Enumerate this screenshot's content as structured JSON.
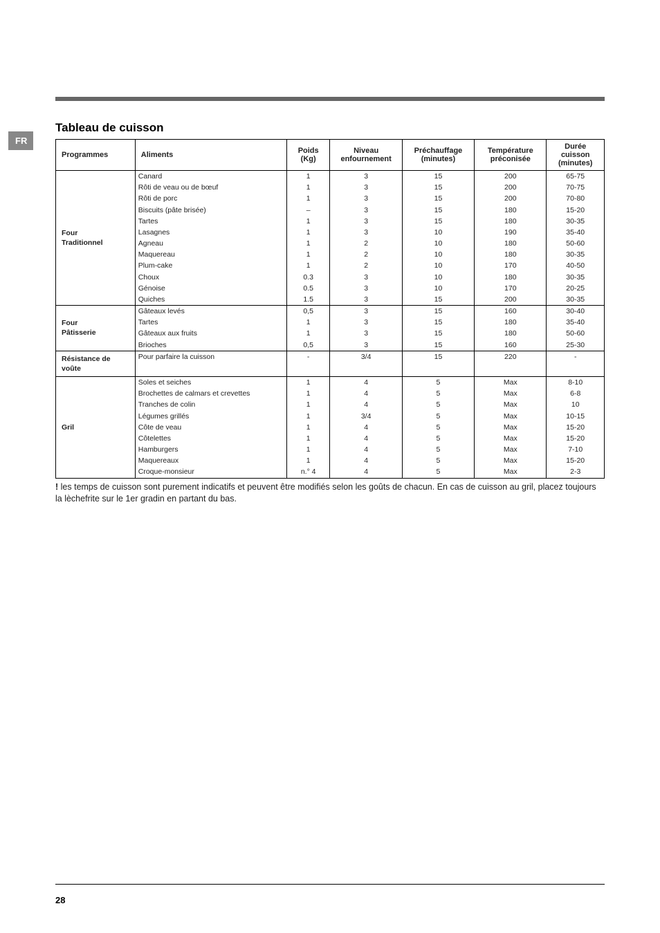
{
  "lang_tab": "FR",
  "page_number": "28",
  "title": "Tableau de cuisson",
  "headers": {
    "programmes": "Programmes",
    "aliments": "Aliments",
    "poids": "Poids (Kg)",
    "niveau": "Niveau enfournement",
    "prechauffage": "Préchauffage (minutes)",
    "temperature": "Température préconisée",
    "duree": "Durée cuisson (minutes)"
  },
  "groups": [
    {
      "programme": "Four Traditionnel",
      "rows": [
        {
          "aliment": "Canard",
          "poids": "1",
          "niveau": "3",
          "prechauf": "15",
          "temp": "200",
          "duree": "65-75"
        },
        {
          "aliment": "Rôti de veau ou de bœuf",
          "poids": "1",
          "niveau": "3",
          "prechauf": "15",
          "temp": "200",
          "duree": "70-75"
        },
        {
          "aliment": "Rôti de porc",
          "poids": "1",
          "niveau": "3",
          "prechauf": "15",
          "temp": "200",
          "duree": "70-80"
        },
        {
          "aliment": "Biscuits (pâte brisée)",
          "poids": "–",
          "niveau": "3",
          "prechauf": "15",
          "temp": "180",
          "duree": "15-20"
        },
        {
          "aliment": "Tartes",
          "poids": "1",
          "niveau": "3",
          "prechauf": "15",
          "temp": "180",
          "duree": "30-35"
        },
        {
          "aliment": "Lasagnes",
          "poids": "1",
          "niveau": "3",
          "prechauf": "10",
          "temp": "190",
          "duree": "35-40"
        },
        {
          "aliment": "Agneau",
          "poids": "1",
          "niveau": "2",
          "prechauf": "10",
          "temp": "180",
          "duree": "50-60"
        },
        {
          "aliment": "Maquereau",
          "poids": "1",
          "niveau": "2",
          "prechauf": "10",
          "temp": "180",
          "duree": "30-35"
        },
        {
          "aliment": "Plum-cake",
          "poids": "1",
          "niveau": "2",
          "prechauf": "10",
          "temp": "170",
          "duree": "40-50"
        },
        {
          "aliment": "Choux",
          "poids": "0.3",
          "niveau": "3",
          "prechauf": "10",
          "temp": "180",
          "duree": "30-35"
        },
        {
          "aliment": "Génoise",
          "poids": "0.5",
          "niveau": "3",
          "prechauf": "10",
          "temp": "170",
          "duree": "20-25"
        },
        {
          "aliment": "Quiches",
          "poids": "1.5",
          "niveau": "3",
          "prechauf": "15",
          "temp": "200",
          "duree": "30-35"
        }
      ]
    },
    {
      "programme": "Four Pâtisserie",
      "rows": [
        {
          "aliment": "Gâteaux levés",
          "poids": "0,5",
          "niveau": "3",
          "prechauf": "15",
          "temp": "160",
          "duree": "30-40"
        },
        {
          "aliment": "Tartes",
          "poids": "1",
          "niveau": "3",
          "prechauf": "15",
          "temp": "180",
          "duree": "35-40"
        },
        {
          "aliment": "Gâteaux aux fruits",
          "poids": "1",
          "niveau": "3",
          "prechauf": "15",
          "temp": "180",
          "duree": "50-60"
        },
        {
          "aliment": "Brioches",
          "poids": "0,5",
          "niveau": "3",
          "prechauf": "15",
          "temp": "160",
          "duree": "25-30"
        }
      ]
    },
    {
      "programme": "Résistance de voûte",
      "rows": [
        {
          "aliment": "Pour parfaire la cuisson",
          "poids": "-",
          "niveau": "3/4",
          "prechauf": "15",
          "temp": "220",
          "duree": "-"
        }
      ]
    },
    {
      "programme": "Gril",
      "rows": [
        {
          "aliment": "Soles et seiches",
          "poids": "1",
          "niveau": "4",
          "prechauf": "5",
          "temp": "Max",
          "duree": "8-10"
        },
        {
          "aliment": "Brochettes de calmars et crevettes",
          "poids": "1",
          "niveau": "4",
          "prechauf": "5",
          "temp": "Max",
          "duree": "6-8"
        },
        {
          "aliment": "Tranches de colin",
          "poids": "1",
          "niveau": "4",
          "prechauf": "5",
          "temp": "Max",
          "duree": "10"
        },
        {
          "aliment": "Légumes grillés",
          "poids": "1",
          "niveau": "3/4",
          "prechauf": "5",
          "temp": "Max",
          "duree": "10-15"
        },
        {
          "aliment": "Côte de veau",
          "poids": "1",
          "niveau": "4",
          "prechauf": "5",
          "temp": "Max",
          "duree": "15-20"
        },
        {
          "aliment": "Côtelettes",
          "poids": "1",
          "niveau": "4",
          "prechauf": "5",
          "temp": "Max",
          "duree": "15-20"
        },
        {
          "aliment": "Hamburgers",
          "poids": "1",
          "niveau": "4",
          "prechauf": "5",
          "temp": "Max",
          "duree": "7-10"
        },
        {
          "aliment": "Maquereaux",
          "poids": "1",
          "niveau": "4",
          "prechauf": "5",
          "temp": "Max",
          "duree": "15-20"
        },
        {
          "aliment": "Croque-monsieur",
          "poids": "n.° 4",
          "niveau": "4",
          "prechauf": "5",
          "temp": "Max",
          "duree": "2-3"
        }
      ]
    }
  ],
  "note": {
    "bang": "!",
    "text": " les temps de cuisson sont purement indicatifs et peuvent être modifiés selon les goûts de chacun.  En cas de cuisson au gril, placez toujours la lèchefrite sur le 1er gradin en partant du bas."
  }
}
